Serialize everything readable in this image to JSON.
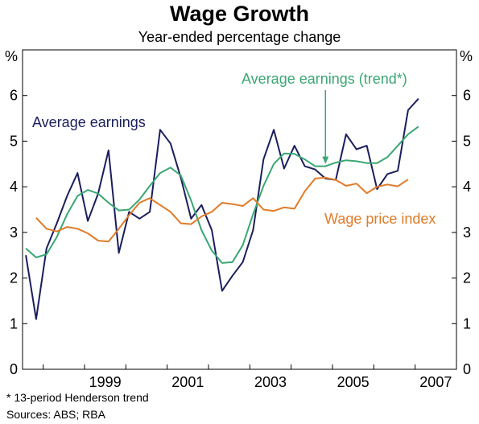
{
  "chart_data": {
    "type": "line",
    "title": "Wage Growth",
    "subtitle": "Year-ended percentage change",
    "ylabel_left": "%",
    "ylabel_right": "%",
    "ylim": [
      0,
      7
    ],
    "yticks": [
      0,
      1,
      2,
      3,
      4,
      5,
      6
    ],
    "xlim": [
      1997.5,
      2008.0
    ],
    "xtick_labels": [
      "1999",
      "2001",
      "2003",
      "2005",
      "2007"
    ],
    "grid": false,
    "series": [
      {
        "name": "Average earnings",
        "color": "#1a1f5c",
        "x": [
          1997.58,
          1997.83,
          1998.08,
          1998.33,
          1998.58,
          1998.83,
          1999.08,
          1999.33,
          1999.58,
          1999.83,
          2000.08,
          2000.33,
          2000.58,
          2000.83,
          2001.08,
          2001.33,
          2001.58,
          2001.83,
          2002.08,
          2002.33,
          2002.58,
          2002.83,
          2003.08,
          2003.33,
          2003.58,
          2003.83,
          2004.08,
          2004.33,
          2004.58,
          2004.83,
          2005.08,
          2005.33,
          2005.58,
          2005.83,
          2006.08,
          2006.33,
          2006.58,
          2006.83,
          2007.08,
          2007.33
        ],
        "values": [
          2.5,
          1.1,
          2.65,
          3.2,
          3.8,
          4.3,
          3.25,
          3.85,
          4.8,
          2.55,
          3.45,
          3.3,
          3.45,
          5.25,
          4.95,
          4.2,
          3.3,
          3.6,
          3.05,
          1.72,
          2.05,
          2.35,
          3.05,
          4.6,
          5.25,
          4.4,
          4.9,
          4.45,
          4.38,
          4.18,
          4.15,
          5.15,
          4.82,
          4.9,
          3.95,
          4.28,
          4.35,
          5.68,
          5.93,
          null
        ]
      },
      {
        "name": "Average earnings (trend*)",
        "color": "#3aa774",
        "x": [
          1997.58,
          1997.83,
          1998.08,
          1998.33,
          1998.58,
          1998.83,
          1999.08,
          1999.33,
          1999.58,
          1999.83,
          2000.08,
          2000.33,
          2000.58,
          2000.83,
          2001.08,
          2001.33,
          2001.58,
          2001.83,
          2002.08,
          2002.33,
          2002.58,
          2002.83,
          2003.08,
          2003.33,
          2003.58,
          2003.83,
          2004.08,
          2004.33,
          2004.58,
          2004.83,
          2005.08,
          2005.33,
          2005.58,
          2005.83,
          2006.08,
          2006.33,
          2006.58,
          2006.83,
          2007.08,
          2007.33
        ],
        "values": [
          2.65,
          2.45,
          2.52,
          2.9,
          3.4,
          3.8,
          3.93,
          3.85,
          3.65,
          3.48,
          3.5,
          3.72,
          4.02,
          4.3,
          4.42,
          4.25,
          3.7,
          3.05,
          2.6,
          2.33,
          2.35,
          2.72,
          3.4,
          4.02,
          4.5,
          4.73,
          4.72,
          4.6,
          4.45,
          4.45,
          4.53,
          4.58,
          4.56,
          4.52,
          4.52,
          4.65,
          4.9,
          5.15,
          5.32,
          null
        ]
      },
      {
        "name": "Wage price index",
        "color": "#e07b28",
        "x": [
          1997.83,
          1998.08,
          1998.33,
          1998.58,
          1998.83,
          1999.08,
          1999.33,
          1999.58,
          1999.83,
          2000.08,
          2000.33,
          2000.58,
          2000.83,
          2001.08,
          2001.33,
          2001.58,
          2001.83,
          2002.08,
          2002.33,
          2002.58,
          2002.83,
          2003.08,
          2003.33,
          2003.58,
          2003.83,
          2004.08,
          2004.33,
          2004.58,
          2004.83,
          2005.08,
          2005.33,
          2005.58,
          2005.83,
          2006.08,
          2006.33,
          2006.58,
          2006.83,
          2007.08,
          2007.33
        ],
        "values": [
          3.32,
          3.08,
          3.02,
          3.12,
          3.08,
          2.98,
          2.82,
          2.8,
          3.08,
          3.38,
          3.65,
          3.75,
          3.6,
          3.45,
          3.2,
          3.18,
          3.35,
          3.45,
          3.65,
          3.62,
          3.58,
          3.75,
          3.5,
          3.47,
          3.55,
          3.52,
          3.9,
          4.18,
          4.2,
          4.15,
          4.02,
          4.07,
          3.86,
          4.0,
          4.05,
          4.01,
          4.16,
          null,
          null
        ]
      }
    ],
    "annotations": [
      {
        "text": "Average earnings",
        "series": 0
      },
      {
        "text": "Average earnings (trend*)",
        "series": 1
      },
      {
        "text": "Wage price index",
        "series": 2
      }
    ]
  },
  "footnote": "*   13-period Henderson trend",
  "sources": "Sources: ABS; RBA"
}
